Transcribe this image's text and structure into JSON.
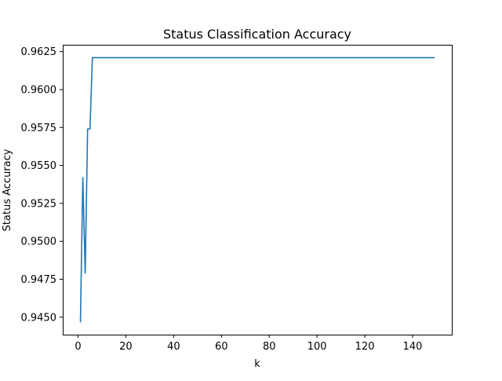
{
  "chart_data": {
    "type": "line",
    "title": "Status Classification Accuracy",
    "xlabel": "k",
    "ylabel": "Status Accuracy",
    "xlim": [
      -6.4,
      156.4
    ],
    "ylim": [
      0.94385,
      0.96295
    ],
    "xticks": [
      0,
      20,
      40,
      60,
      80,
      100,
      120,
      140
    ],
    "xtick_labels": [
      "0",
      "20",
      "40",
      "60",
      "80",
      "100",
      "120",
      "140"
    ],
    "yticks": [
      0.945,
      0.9475,
      0.95,
      0.9525,
      0.955,
      0.9575,
      0.96,
      0.9625
    ],
    "ytick_labels": [
      "0.9450",
      "0.9475",
      "0.9500",
      "0.9525",
      "0.9550",
      "0.9575",
      "0.9600",
      "0.9625"
    ],
    "grid": false,
    "series": [
      {
        "color": "#1f77b4",
        "x": [
          1,
          2,
          3,
          4,
          5,
          6,
          149
        ],
        "y": [
          0.9447,
          0.9542,
          0.9479,
          0.9574,
          0.9574,
          0.9621,
          0.9621
        ]
      }
    ]
  }
}
